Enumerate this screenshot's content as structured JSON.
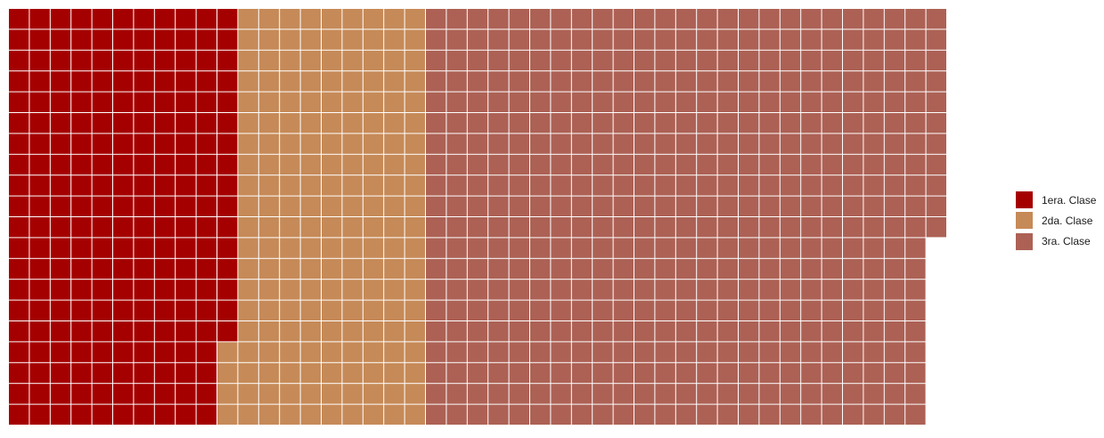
{
  "chart_data": {
    "type": "waffle",
    "rows": 20,
    "fill_direction": "column-wise, top to bottom",
    "series": [
      {
        "name": "1era. Clase",
        "value": 216,
        "color": "#a50000"
      },
      {
        "name": "2da. Clase",
        "value": 184,
        "color": "#c68a58"
      },
      {
        "name": "3ra. Clase",
        "value": 491,
        "color": "#ad6155"
      }
    ],
    "legend_position": "right",
    "grid_line_color": "#ffffff"
  }
}
